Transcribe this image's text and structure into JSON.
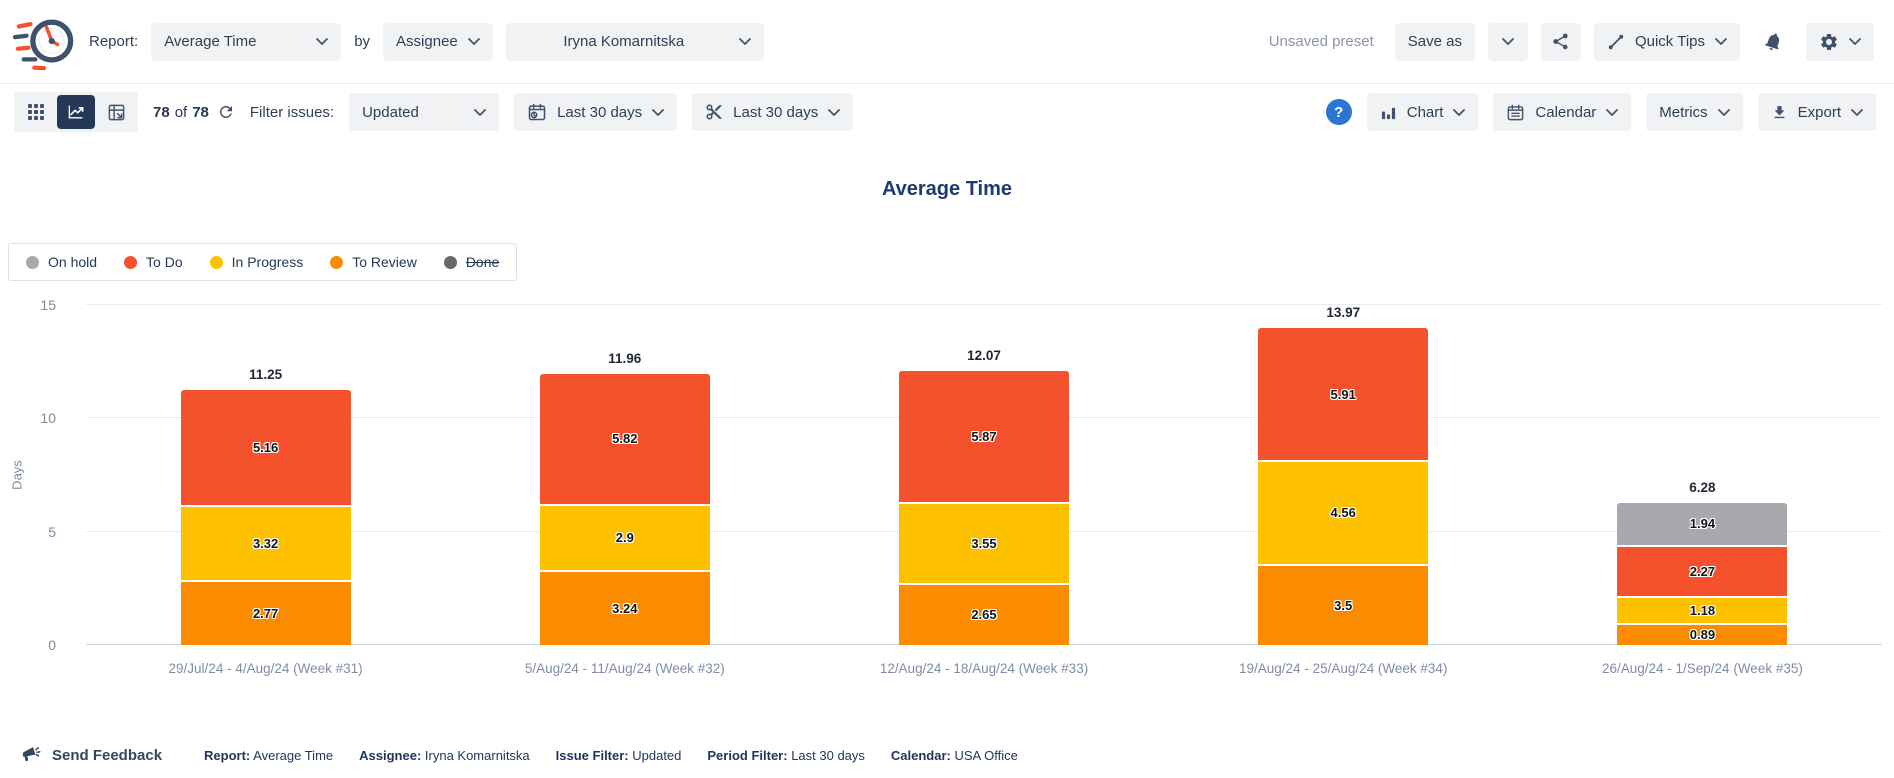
{
  "header": {
    "report_label": "Report:",
    "report_value": "Average Time",
    "by_label": "by",
    "group_value": "Assignee",
    "assignee_value": "Iryna Komarnitska",
    "unsaved_preset": "Unsaved preset",
    "save_as_label": "Save as",
    "quick_tips_label": "Quick Tips"
  },
  "toolbar": {
    "count_from": "78",
    "count_of_label": "of",
    "count_total": "78",
    "filter_issues_label": "Filter issues:",
    "issue_filter_value": "Updated",
    "date_range_value": "Last 30 days",
    "trim_range_value": "Last 30 days",
    "chart_label": "Chart",
    "calendar_label": "Calendar",
    "metrics_label": "Metrics",
    "export_label": "Export"
  },
  "chart_data": {
    "type": "bar",
    "stacked": true,
    "title": "Average Time",
    "ylabel": "Days",
    "ylim": [
      0,
      15
    ],
    "yticks": [
      0,
      5,
      10,
      15
    ],
    "grid": true,
    "legend_position": "top-left",
    "categories": [
      "29/Jul/24 - 4/Aug/24 (Week #31)",
      "5/Aug/24 - 11/Aug/24 (Week #32)",
      "12/Aug/24 - 18/Aug/24 (Week #33)",
      "19/Aug/24 - 25/Aug/24 (Week #34)",
      "26/Aug/24 - 1/Sep/24 (Week #35)"
    ],
    "series": [
      {
        "name": "To Review",
        "color": "#fb8c00",
        "values": [
          2.77,
          3.24,
          2.65,
          3.5,
          0.89
        ]
      },
      {
        "name": "In Progress",
        "color": "#fdc100",
        "values": [
          3.32,
          2.9,
          3.55,
          4.56,
          1.18
        ]
      },
      {
        "name": "To Do",
        "color": "#f4512c",
        "values": [
          5.16,
          5.82,
          5.87,
          5.91,
          2.27
        ]
      },
      {
        "name": "On hold",
        "color": "#a8a8af",
        "values": [
          0,
          0,
          0,
          0,
          1.94
        ]
      }
    ],
    "totals": [
      11.25,
      11.96,
      12.07,
      13.97,
      6.28
    ],
    "legend": [
      {
        "label": "On hold",
        "color": "#a8a8af",
        "disabled": false
      },
      {
        "label": "To Do",
        "color": "#f4512c",
        "disabled": false
      },
      {
        "label": "In Progress",
        "color": "#fdc100",
        "disabled": false
      },
      {
        "label": "To Review",
        "color": "#fb8c00",
        "disabled": false
      },
      {
        "label": "Done",
        "color": "#66696e",
        "disabled": true
      }
    ]
  },
  "footer": {
    "send_feedback": "Send Feedback",
    "summary": [
      {
        "label": "Report:",
        "value": "Average Time"
      },
      {
        "label": "Assignee:",
        "value": "Iryna Komarnitska"
      },
      {
        "label": "Issue Filter:",
        "value": "Updated"
      },
      {
        "label": "Period Filter:",
        "value": "Last 30 days"
      },
      {
        "label": "Calendar:",
        "value": "USA Office"
      }
    ]
  },
  "colors": {
    "accent_navy": "#253858",
    "help_blue": "#2a76d2",
    "title_blue": "#1d3b6e",
    "button_bg": "#f1f2f4",
    "axis_text": "#7d8ba1",
    "zero_line": "#ccd6e5"
  },
  "icons": {
    "logo": "speeding-clock",
    "share": "share-nodes",
    "quick_tips": "guided-path",
    "notifications": "bell",
    "settings": "gear",
    "view_grid": "grid-dots",
    "view_chart": "line-chart",
    "view_pivot": "pivot-table",
    "refresh": "refresh-arrows",
    "date_filter": "calendar-clock",
    "trim_filter": "scissors",
    "help": "question-circle",
    "chart_menu": "bar-chart",
    "calendar_menu": "calendar",
    "export_menu": "download",
    "feedback": "megaphone",
    "dropdown": "chevron-down"
  }
}
